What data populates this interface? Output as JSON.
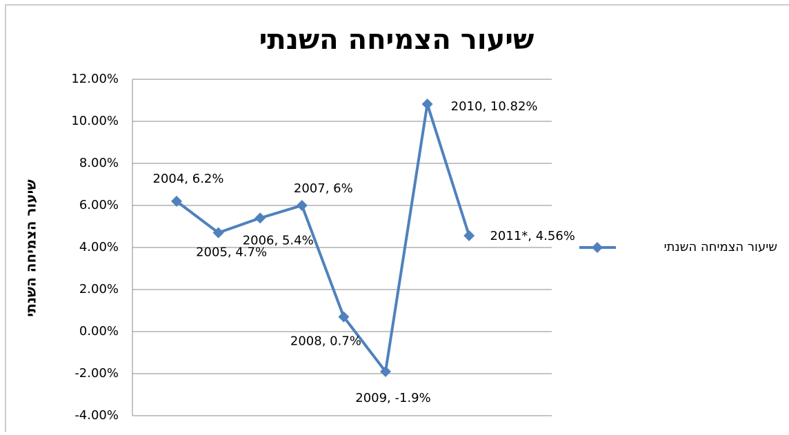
{
  "chart_data": {
    "type": "line",
    "title": "שיעור הצמיחה השנתי",
    "y_label": "שיעור הצמיחה השנתי",
    "categories": [
      "2004",
      "2005",
      "2006",
      "2007",
      "2008",
      "2009",
      "2010",
      "2011*"
    ],
    "series": [
      {
        "name": "שיעור הצמיחה השנתי",
        "color": "#4f81bd",
        "values": [
          6.2,
          4.7,
          5.4,
          6,
          0.7,
          -1.9,
          10.82,
          4.56
        ],
        "value_labels": [
          "2004, 6.2%",
          "2005, 4.7%",
          "2006, 5.4%",
          "2007, 6%",
          "2008, 0.7%",
          "2009, -1.9%",
          "2010, 10.82%",
          "2011*, 4.56%"
        ]
      }
    ],
    "ylim": [
      -4,
      12
    ],
    "yticks": [
      {
        "value": -4,
        "label": "-4.00%"
      },
      {
        "value": -2,
        "label": "-2.00%"
      },
      {
        "value": 0,
        "label": "0.00%"
      },
      {
        "value": 2,
        "label": "2.00%"
      },
      {
        "value": 4,
        "label": "4.00%"
      },
      {
        "value": 6,
        "label": "6.00%"
      },
      {
        "value": 8,
        "label": "8.00%"
      },
      {
        "value": 10,
        "label": "10.00%"
      },
      {
        "value": 12,
        "label": "12.00%"
      }
    ],
    "grid": true,
    "legend": "right"
  }
}
